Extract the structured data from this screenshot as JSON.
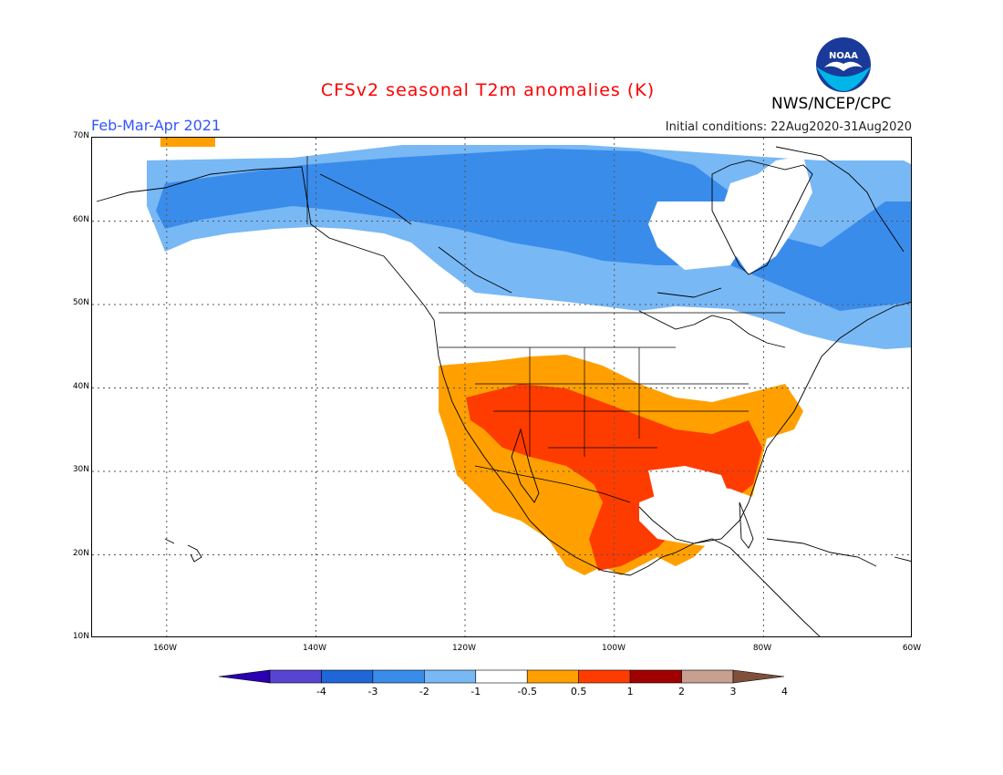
{
  "header": {
    "title": "CFSv2 seasonal T2m anomalies (K)",
    "period": "Feb-Mar-Apr 2021",
    "initial_conditions": "Initial conditions: 22Aug2020-31Aug2020",
    "agency": "NWS/NCEP/CPC",
    "logo_text": "NOAA"
  },
  "map": {
    "lat_labels": [
      "70N",
      "60N",
      "50N",
      "40N",
      "30N",
      "20N",
      "10N"
    ],
    "lon_labels": [
      "160W",
      "140W",
      "120W",
      "100W",
      "80W",
      "60W"
    ],
    "extent": {
      "lon_min": -170,
      "lon_max": -60,
      "lat_min": 10,
      "lat_max": 70
    },
    "grid": true
  },
  "colorbar": {
    "labels": [
      "-4",
      "-3",
      "-2",
      "-1",
      "-0.5",
      "0.5",
      "1",
      "2",
      "3",
      "4"
    ],
    "colors": [
      "#2a00b0",
      "#5545d0",
      "#1f66d8",
      "#3a8ceb",
      "#78b8f5",
      "#ffffff",
      "#ffa000",
      "#ff3c00",
      "#a00000",
      "#c8a090",
      "#80503c"
    ]
  },
  "colors": {
    "cold_strong": "#3a8ceb",
    "cold_weak": "#78b8f5",
    "warm_weak": "#ffa000",
    "warm_strong": "#ff3c00"
  }
}
